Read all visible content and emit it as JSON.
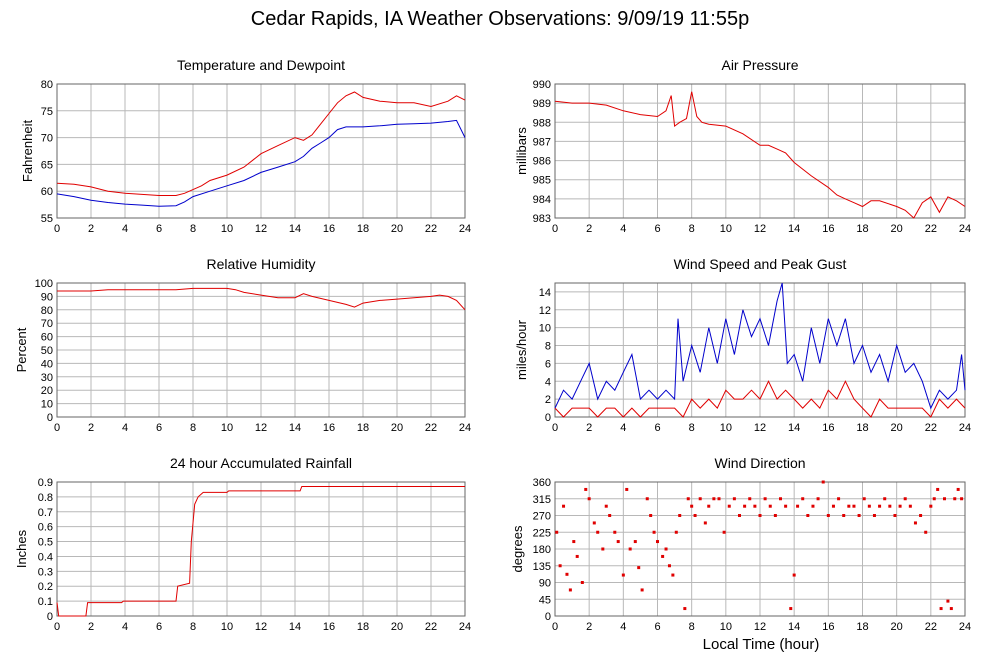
{
  "title": "Cedar Rapids, IA Weather Observations: 9/09/19 11:55p",
  "x_axis_caption": "Local Time (hour)",
  "colors": {
    "red": "#e00000",
    "blue": "#0000cc",
    "grid": "#b8b8b8"
  },
  "chart_data": [
    {
      "type": "line",
      "title": "Temperature and Dewpoint",
      "ylabel": "Fahrenheit",
      "xlim": [
        0,
        24
      ],
      "ylim": [
        55,
        80
      ],
      "xticks": [
        0,
        2,
        4,
        6,
        8,
        10,
        12,
        14,
        16,
        18,
        20,
        22,
        24
      ],
      "yticks": [
        55,
        60,
        65,
        70,
        75,
        80
      ],
      "series": [
        {
          "color": "#e00000",
          "x": [
            0,
            1,
            2,
            3,
            4,
            5,
            6,
            7,
            7.5,
            8,
            8.5,
            9,
            10,
            11,
            12,
            13,
            14,
            14.5,
            15,
            15.5,
            16,
            16.5,
            17,
            17.5,
            18,
            19,
            20,
            21,
            22,
            23,
            23.5,
            24
          ],
          "y": [
            61.5,
            61.3,
            60.8,
            60.0,
            59.6,
            59.4,
            59.2,
            59.2,
            59.6,
            60.3,
            61.0,
            62.0,
            63.0,
            64.5,
            67.0,
            68.5,
            70.0,
            69.5,
            70.5,
            72.5,
            74.5,
            76.5,
            77.8,
            78.5,
            77.5,
            76.8,
            76.5,
            76.5,
            75.8,
            76.8,
            77.8,
            77.0
          ]
        },
        {
          "color": "#0000cc",
          "x": [
            0,
            1,
            2,
            3,
            4,
            5,
            6,
            7,
            7.5,
            8,
            9,
            10,
            11,
            12,
            13,
            14,
            14.5,
            15,
            15.5,
            16,
            16.5,
            17,
            18,
            19,
            20,
            21,
            22,
            23,
            23.5,
            24
          ],
          "y": [
            59.5,
            59.0,
            58.3,
            57.9,
            57.6,
            57.4,
            57.2,
            57.3,
            58.0,
            59.0,
            60.0,
            61.0,
            62.0,
            63.5,
            64.5,
            65.5,
            66.5,
            68.0,
            69.0,
            70.0,
            71.5,
            72.0,
            72.0,
            72.2,
            72.5,
            72.6,
            72.7,
            73.0,
            73.2,
            70.0
          ]
        }
      ]
    },
    {
      "type": "line",
      "title": "Air Pressure",
      "ylabel": "millibars",
      "xlim": [
        0,
        24
      ],
      "ylim": [
        983,
        990
      ],
      "xticks": [
        0,
        2,
        4,
        6,
        8,
        10,
        12,
        14,
        16,
        18,
        20,
        22,
        24
      ],
      "yticks": [
        983,
        984,
        985,
        986,
        987,
        988,
        989,
        990
      ],
      "series": [
        {
          "color": "#e00000",
          "x": [
            0,
            1,
            2,
            3,
            4,
            5,
            6,
            6.5,
            6.8,
            7,
            7.3,
            7.7,
            8,
            8.3,
            8.6,
            9,
            10,
            11,
            12,
            12.5,
            13,
            13.5,
            14,
            15,
            16,
            16.5,
            17,
            17.5,
            18,
            18.5,
            19,
            20,
            20.5,
            21,
            21.5,
            22,
            22.5,
            23,
            23.5,
            24
          ],
          "y": [
            989.1,
            989.0,
            989.0,
            988.9,
            988.6,
            988.4,
            988.3,
            988.6,
            989.4,
            987.8,
            988.0,
            988.2,
            989.6,
            988.3,
            988.0,
            987.9,
            987.8,
            987.4,
            986.8,
            986.8,
            986.6,
            986.4,
            985.9,
            985.2,
            984.6,
            984.2,
            984.0,
            983.8,
            983.6,
            983.9,
            983.9,
            983.6,
            983.4,
            983.0,
            983.8,
            984.1,
            983.3,
            984.1,
            983.9,
            983.6
          ]
        }
      ]
    },
    {
      "type": "line",
      "title": "Relative Humidity",
      "ylabel": "Percent",
      "xlim": [
        0,
        24
      ],
      "ylim": [
        0,
        100
      ],
      "xticks": [
        0,
        2,
        4,
        6,
        8,
        10,
        12,
        14,
        16,
        18,
        20,
        22,
        24
      ],
      "yticks": [
        0,
        10,
        20,
        30,
        40,
        50,
        60,
        70,
        80,
        90,
        100
      ],
      "series": [
        {
          "color": "#e00000",
          "x": [
            0,
            1,
            2,
            3,
            4,
            5,
            6,
            7,
            8,
            9,
            10,
            10.5,
            11,
            12,
            13,
            14,
            14.5,
            15,
            16,
            17,
            17.5,
            18,
            19,
            20,
            21,
            22,
            22.5,
            23,
            23.5,
            24
          ],
          "y": [
            94,
            94,
            94,
            95,
            95,
            95,
            95,
            95,
            96,
            96,
            96,
            95,
            93,
            91,
            89,
            89,
            92,
            90,
            87,
            84,
            82,
            85,
            87,
            88,
            89,
            90,
            91,
            90,
            87,
            80
          ]
        }
      ]
    },
    {
      "type": "line",
      "title": "Wind Speed and Peak Gust",
      "ylabel": "miles/hour",
      "xlim": [
        0,
        24
      ],
      "ylim": [
        0,
        15
      ],
      "xticks": [
        0,
        2,
        4,
        6,
        8,
        10,
        12,
        14,
        16,
        18,
        20,
        22,
        24
      ],
      "yticks": [
        0,
        2,
        4,
        6,
        8,
        10,
        12,
        14
      ],
      "series": [
        {
          "color": "#0000cc",
          "x": [
            0,
            0.5,
            1,
            1.5,
            2,
            2.5,
            3,
            3.5,
            4,
            4.5,
            5,
            5.5,
            6,
            6.5,
            7,
            7.2,
            7.5,
            8,
            8.5,
            9,
            9.5,
            10,
            10.5,
            11,
            11.5,
            12,
            12.5,
            13,
            13.3,
            13.6,
            14,
            14.5,
            15,
            15.5,
            16,
            16.5,
            17,
            17.5,
            18,
            18.5,
            19,
            19.5,
            20,
            20.5,
            21,
            21.5,
            22,
            22.5,
            23,
            23.5,
            23.8,
            24
          ],
          "y": [
            1,
            3,
            2,
            4,
            6,
            2,
            4,
            3,
            5,
            7,
            2,
            3,
            2,
            3,
            2,
            11,
            4,
            8,
            5,
            10,
            6,
            11,
            7,
            12,
            9,
            11,
            8,
            13,
            15,
            6,
            7,
            4,
            10,
            6,
            11,
            8,
            11,
            6,
            8,
            5,
            7,
            4,
            8,
            5,
            6,
            4,
            1,
            3,
            2,
            3,
            7,
            3
          ]
        },
        {
          "color": "#e00000",
          "x": [
            0,
            0.5,
            1,
            1.5,
            2,
            2.5,
            3,
            3.5,
            4,
            4.5,
            5,
            5.5,
            6,
            6.5,
            7,
            7.5,
            8,
            8.5,
            9,
            9.5,
            10,
            10.5,
            11,
            11.5,
            12,
            12.5,
            13,
            13.5,
            14,
            14.5,
            15,
            15.5,
            16,
            16.5,
            17,
            17.5,
            18,
            18.5,
            19,
            19.5,
            20,
            20.5,
            21,
            21.5,
            22,
            22.5,
            23,
            23.5,
            24
          ],
          "y": [
            1,
            0,
            1,
            1,
            1,
            0,
            1,
            1,
            0,
            1,
            0,
            1,
            1,
            1,
            1,
            0,
            2,
            1,
            2,
            1,
            3,
            2,
            2,
            3,
            2,
            4,
            2,
            3,
            2,
            1,
            2,
            1,
            3,
            2,
            4,
            2,
            1,
            0,
            2,
            1,
            1,
            1,
            1,
            1,
            0,
            2,
            1,
            2,
            1
          ]
        }
      ]
    },
    {
      "type": "line",
      "title": "24 hour Accumulated Rainfall",
      "ylabel": "Inches",
      "xlim": [
        0,
        24
      ],
      "ylim": [
        0,
        0.9
      ],
      "xticks": [
        0,
        2,
        4,
        6,
        8,
        10,
        12,
        14,
        16,
        18,
        20,
        22,
        24
      ],
      "yticks": [
        0,
        0.1,
        0.2,
        0.3,
        0.4,
        0.5,
        0.6,
        0.7,
        0.8,
        0.9
      ],
      "series": [
        {
          "color": "#e00000",
          "x": [
            0,
            0.1,
            1.7,
            1.8,
            3.8,
            3.9,
            7.0,
            7.1,
            7.8,
            7.9,
            8.1,
            8.3,
            8.6,
            9.0,
            10.0,
            10.1,
            14.3,
            14.4,
            24
          ],
          "y": [
            0.09,
            0,
            0,
            0.09,
            0.09,
            0.1,
            0.1,
            0.2,
            0.22,
            0.5,
            0.75,
            0.8,
            0.83,
            0.83,
            0.83,
            0.84,
            0.84,
            0.87,
            0.87
          ]
        }
      ]
    },
    {
      "type": "scatter",
      "title": "Wind Direction",
      "ylabel": "degrees",
      "xlabel": "Local Time (hour)",
      "xlim": [
        0,
        24
      ],
      "ylim": [
        0,
        360
      ],
      "xticks": [
        0,
        2,
        4,
        6,
        8,
        10,
        12,
        14,
        16,
        18,
        20,
        22,
        24
      ],
      "yticks": [
        0,
        45,
        90,
        135,
        180,
        225,
        270,
        315,
        360
      ],
      "series": [
        {
          "color": "#e00000",
          "x": [
            0.1,
            0.3,
            0.5,
            0.7,
            0.9,
            1.1,
            1.3,
            1.6,
            1.8,
            2.0,
            2.3,
            2.5,
            2.8,
            3.0,
            3.2,
            3.5,
            3.7,
            4.0,
            4.2,
            4.4,
            4.7,
            4.9,
            5.1,
            5.4,
            5.6,
            5.8,
            6.0,
            6.3,
            6.5,
            6.7,
            6.9,
            7.1,
            7.3,
            7.6,
            7.8,
            8.0,
            8.2,
            8.5,
            8.8,
            9.0,
            9.3,
            9.6,
            9.9,
            10.2,
            10.5,
            10.8,
            11.1,
            11.4,
            11.7,
            12.0,
            12.3,
            12.6,
            12.9,
            13.2,
            13.5,
            13.8,
            14.0,
            14.2,
            14.5,
            14.8,
            15.1,
            15.4,
            15.7,
            16.0,
            16.3,
            16.6,
            16.9,
            17.2,
            17.5,
            17.8,
            18.1,
            18.4,
            18.7,
            19.0,
            19.3,
            19.6,
            19.9,
            20.2,
            20.5,
            20.8,
            21.1,
            21.4,
            21.7,
            22.0,
            22.2,
            22.4,
            22.6,
            22.8,
            23.0,
            23.2,
            23.4,
            23.6,
            23.8
          ],
          "y": [
            225,
            135,
            295,
            112,
            70,
            200,
            160,
            90,
            340,
            315,
            250,
            225,
            180,
            295,
            270,
            225,
            200,
            110,
            340,
            180,
            200,
            130,
            70,
            315,
            270,
            225,
            200,
            160,
            180,
            135,
            110,
            225,
            270,
            20,
            315,
            295,
            270,
            315,
            250,
            295,
            315,
            315,
            225,
            295,
            315,
            270,
            295,
            315,
            295,
            270,
            315,
            295,
            270,
            315,
            295,
            20,
            110,
            295,
            315,
            270,
            295,
            315,
            360,
            270,
            295,
            315,
            270,
            295,
            295,
            270,
            315,
            295,
            270,
            295,
            315,
            295,
            270,
            295,
            315,
            295,
            250,
            270,
            225,
            295,
            315,
            340,
            20,
            315,
            40,
            20,
            315,
            340,
            315
          ]
        }
      ]
    }
  ]
}
